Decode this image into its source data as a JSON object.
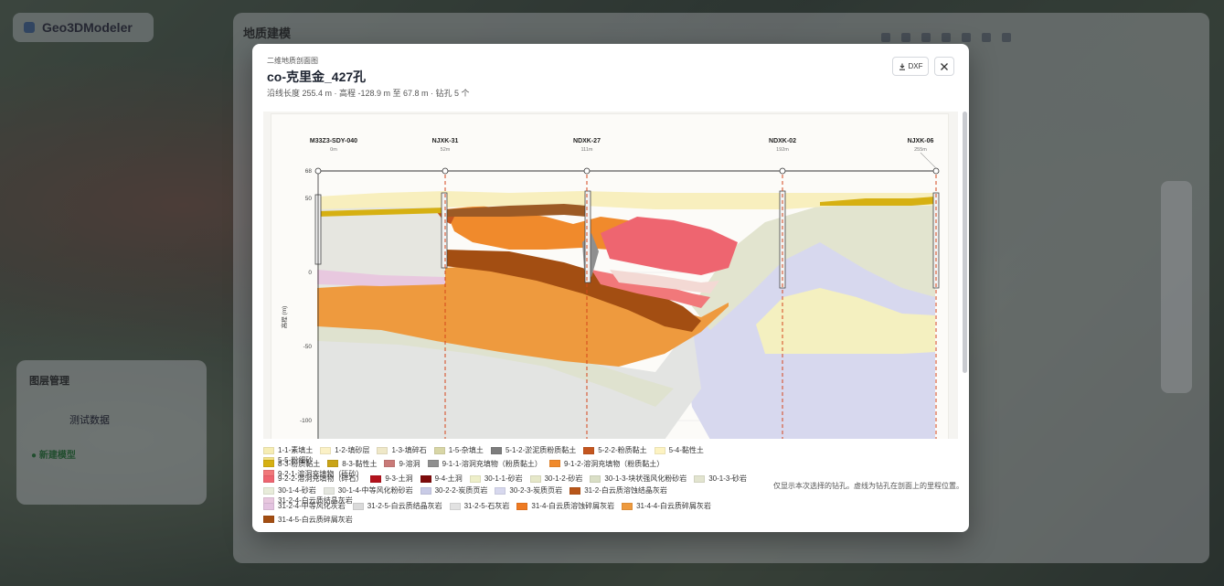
{
  "app": {
    "title": "Geo3DModeler"
  },
  "background_panel": {
    "title": "地质建模"
  },
  "background_float": {
    "title": "图层管理",
    "item": "测试数据",
    "status": "● 新建模型"
  },
  "modal": {
    "subtitle": "二维地质剖面图",
    "title": "co-克里金_427孔",
    "meta": "沿线长度 255.4 m · 高程 -128.9 m 至 67.8 m · 钻孔 5 个",
    "dxf_label": "DXF",
    "close_icon": "close-icon",
    "download_icon": "download-icon",
    "note": "仅显示本次选择的钻孔。虚线为钻孔在剖面上的里程位置。"
  },
  "chart_data": {
    "type": "geologic-section",
    "ylabel": "高程 (m)",
    "y_ticks": [
      "68",
      "50",
      "0",
      "-50",
      "-100"
    ],
    "boreholes": [
      {
        "name": "M33Z3-SDY-040",
        "chainage": "0m"
      },
      {
        "name": "NJXK-31",
        "chainage": "52m"
      },
      {
        "name": "NDXK-27",
        "chainage": "111m"
      },
      {
        "name": "NDXK-02",
        "chainage": "192m"
      },
      {
        "name": "NJXK-06",
        "chainage": "255m"
      }
    ]
  },
  "legend": [
    [
      {
        "label": "1-1-素填土",
        "color": "#f6edb4"
      },
      {
        "label": "1-2-填砂层",
        "color": "#fbf1c6"
      },
      {
        "label": "1-3-填碎石",
        "color": "#efe8c8"
      },
      {
        "label": "1-5-杂填土",
        "color": "#d8d6a6"
      },
      {
        "label": "5-1-2-淤泥质粉质黏土",
        "color": "#7d7d7d"
      },
      {
        "label": "5-2-2-粉质黏土",
        "color": "#c4561f"
      },
      {
        "label": "5-4-黏性土",
        "color": "#fdf3c2"
      },
      {
        "label": "5-5-粉细砂",
        "color": "#f2e28a"
      }
    ],
    [
      {
        "label": "8-3-粉质黏土",
        "color": "#d6b012"
      },
      {
        "label": "8-3-黏性土",
        "color": "#c9a417"
      },
      {
        "label": "9-溶洞",
        "color": "#c97a78"
      },
      {
        "label": "9-1-1-溶洞充填物（粉质黏土）",
        "color": "#8f8f8f"
      },
      {
        "label": "9-1-2-溶洞充填物（粉质黏土）",
        "color": "#f08a2c"
      },
      {
        "label": "9-2-1-溶洞充填物（砾砂）",
        "color": "#f1787a"
      }
    ],
    [
      {
        "label": "9-2-2-溶洞充填物（碎石）",
        "color": "#ee6570"
      },
      {
        "label": "9-3-土洞",
        "color": "#b3121c"
      },
      {
        "label": "9-4-土洞",
        "color": "#7e0b0b"
      },
      {
        "label": "30-1-1-砂岩",
        "color": "#eeefc9"
      },
      {
        "label": "30-1-2-砂岩",
        "color": "#e6e8c9"
      },
      {
        "label": "30-1-3-块状强风化粉砂岩",
        "color": "#dadfc6"
      },
      {
        "label": "30-1-3-砂岩",
        "color": "#e2e4cf"
      }
    ],
    [
      {
        "label": "30-1-4-砂岩",
        "color": "#e8ecda"
      },
      {
        "label": "30-1-4-中等风化粉砂岩",
        "color": "#e4e6df"
      },
      {
        "label": "30-2-2-炭质页岩",
        "color": "#c9cbe6"
      },
      {
        "label": "30-2-3-炭质页岩",
        "color": "#d7d8ee"
      },
      {
        "label": "31-2-白云质溶蚀结晶灰岩",
        "color": "#b8561a"
      },
      {
        "label": "31-2-4-白云质结晶灰岩",
        "color": "#e8c8df"
      }
    ],
    [
      {
        "label": "31-2-4-中等风化灰岩",
        "color": "#e3c3e0"
      },
      {
        "label": "31-2-5-白云质结晶灰岩",
        "color": "#dadada"
      },
      {
        "label": "31-2-5-石灰岩",
        "color": "#e2e2e2"
      },
      {
        "label": "31-4-白云质溶蚀碎屑灰岩",
        "color": "#ee7a22"
      },
      {
        "label": "31-4-4-白云质碎屑灰岩",
        "color": "#ee9a3e"
      }
    ],
    [
      {
        "label": "31-4-5-白云质碎屑灰岩",
        "color": "#a34e12"
      }
    ]
  ]
}
